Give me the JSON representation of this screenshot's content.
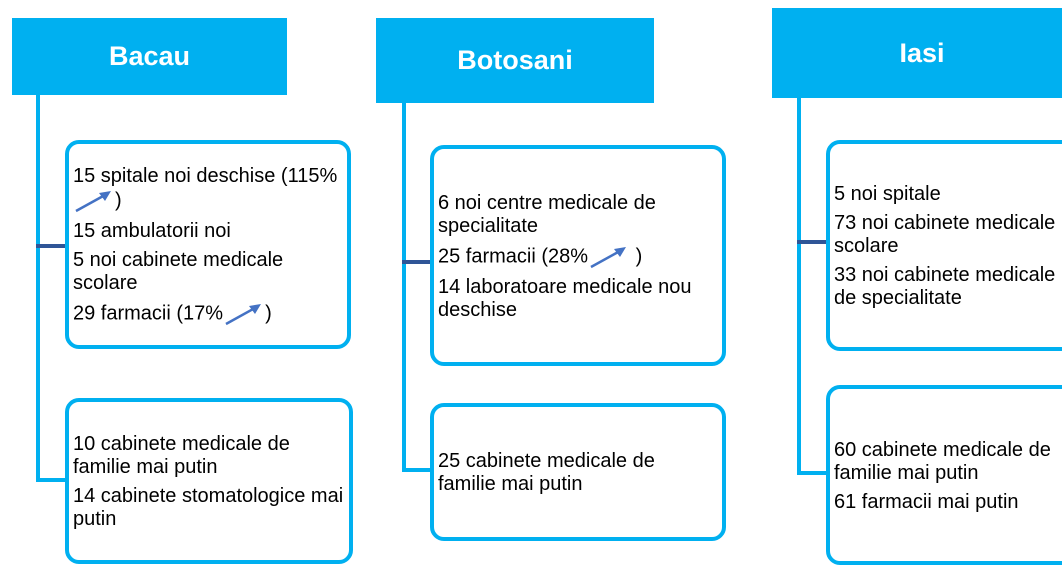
{
  "columns": [
    {
      "title": "Bacau",
      "boxes": [
        {
          "items": [
            [
              "15 spitale noi deschise (115%",
              ")"
            ],
            [
              "15 ambulatorii noi"
            ],
            [
              "5 noi cabinete medicale scolare"
            ],
            [
              "29 farmacii (17%",
              ")"
            ]
          ]
        },
        {
          "items": [
            [
              "10 cabinete medicale de familie mai putin"
            ],
            [
              "14 cabinete stomatologice mai putin"
            ]
          ]
        }
      ]
    },
    {
      "title": "Botosani",
      "boxes": [
        {
          "items": [
            [
              "6 noi centre medicale de specialitate"
            ],
            [
              "25 farmacii (28%",
              " )"
            ],
            [
              "14 laboratoare medicale nou deschise"
            ]
          ]
        },
        {
          "items": [
            [
              "25 cabinete medicale de familie mai putin"
            ]
          ]
        }
      ]
    },
    {
      "title": "Iasi",
      "boxes": [
        {
          "items": [
            [
              "5 noi spitale"
            ],
            [
              "73 noi cabinete medicale scolare"
            ],
            [
              "33 noi cabinete medicale de specialitate"
            ]
          ]
        },
        {
          "items": [
            [
              "60 cabinete medicale de familie mai putin"
            ],
            [
              "61 farmacii mai putin"
            ]
          ]
        }
      ]
    }
  ]
}
